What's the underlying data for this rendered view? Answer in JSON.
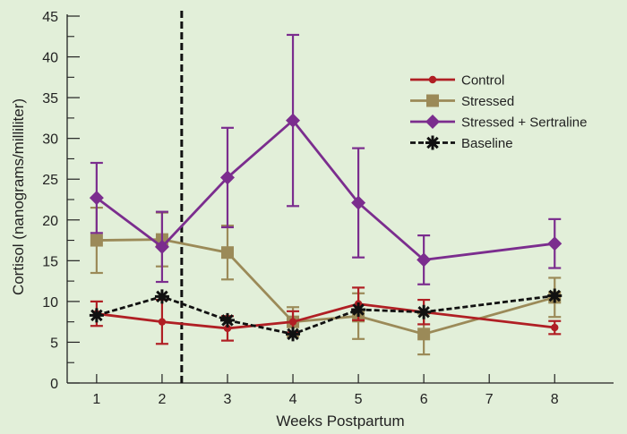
{
  "chart_data": {
    "type": "line",
    "xlabel": "Weeks Postpartum",
    "ylabel": "Cortisol (nanograms/milliliter)",
    "x_ticks": [
      1,
      2,
      3,
      4,
      5,
      6,
      7,
      8
    ],
    "x_tick_labels": [
      "1",
      "2",
      "3",
      "4",
      "5",
      "6",
      "7",
      "8"
    ],
    "ylim": [
      0,
      45
    ],
    "y_ticks": [
      0,
      5,
      10,
      15,
      20,
      25,
      30,
      35,
      40,
      45
    ],
    "y_tick_labels": [
      "0",
      "5",
      "10",
      "15",
      "20",
      "25",
      "30",
      "35",
      "40",
      "45"
    ],
    "divider_x": 2.3,
    "grid": false,
    "legend_position": "right",
    "series": [
      {
        "name": "Control",
        "color": "#b01f24",
        "marker": "circle",
        "dashed": false,
        "x": [
          1,
          2,
          3,
          4,
          5,
          6,
          8
        ],
        "y": [
          8.5,
          7.5,
          6.7,
          7.5,
          9.7,
          8.7,
          6.8
        ],
        "err": [
          1.5,
          2.7,
          1.5,
          1.3,
          2.0,
          1.5,
          0.8
        ]
      },
      {
        "name": "Stressed",
        "color": "#9b8a58",
        "marker": "square",
        "dashed": false,
        "x": [
          1,
          2,
          3,
          4,
          5,
          6,
          8
        ],
        "y": [
          17.5,
          17.6,
          16.0,
          7.5,
          8.2,
          6.0,
          10.5
        ],
        "err": [
          4.0,
          3.3,
          3.3,
          1.8,
          2.8,
          2.5,
          2.4
        ]
      },
      {
        "name": "Stressed + Sertraline",
        "color": "#7b2d8e",
        "marker": "diamond",
        "dashed": false,
        "x": [
          1,
          2,
          3,
          4,
          5,
          6,
          8
        ],
        "y": [
          22.7,
          16.7,
          25.2,
          32.2,
          22.1,
          15.1,
          17.1
        ],
        "err": [
          4.3,
          4.3,
          6.1,
          10.5,
          6.7,
          3.0,
          3.0
        ]
      },
      {
        "name": "Baseline",
        "color": "#111111",
        "marker": "asterisk",
        "dashed": true,
        "x": [
          1,
          2,
          3,
          4,
          5,
          6,
          8
        ],
        "y": [
          8.3,
          10.6,
          7.7,
          6.0,
          9.0,
          8.7,
          10.7
        ],
        "err": []
      }
    ]
  }
}
